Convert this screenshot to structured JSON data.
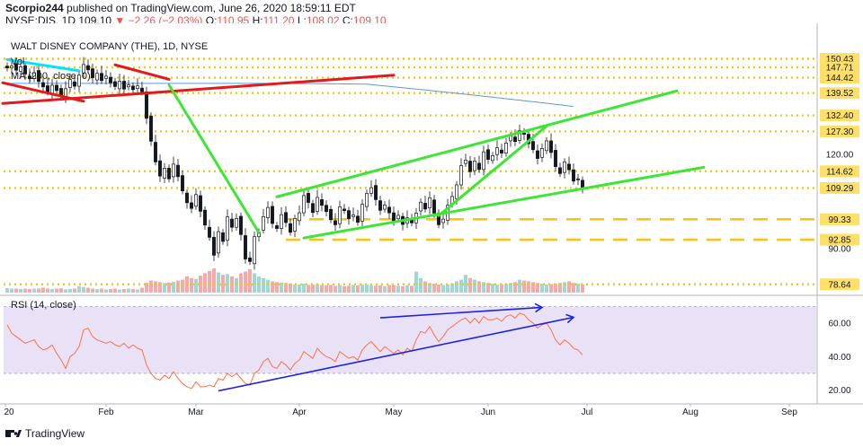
{
  "header": {
    "author": "Scorpio244",
    "published": "published on TradingView.com, June 26, 2020 18:59:11 EDT",
    "symbol": "NYSE:DIS, 1D",
    "last": "109.10",
    "change_arrow": "▼",
    "change": "−2.26 (−2.03%)",
    "o_label": "O:",
    "o_value": "110.95",
    "h_label": "H:",
    "h_value": "111.20",
    "l_label": "L:",
    "l_value": "108.02",
    "c_label": "C:",
    "c_value": "109.10"
  },
  "footer": {
    "brand": "TradingView"
  },
  "chart_data": [
    {
      "type": "candlestick",
      "title": "WALT DISNEY COMPANY (THE), 1D, NYSE",
      "legend": [
        "Vol",
        "MA (200, close, 0)"
      ],
      "colors": {
        "up": "#26a69a",
        "down": "#ef5350",
        "ma": "#5b9bd5",
        "level": "#f5c518",
        "red_line": "#e31a1c",
        "green_line": "#3de635",
        "cyan_line": "#00e5ff"
      },
      "x_ticks": [
        "20",
        "Feb",
        "Mar",
        "Apr",
        "May",
        "Jun",
        "Jul",
        "Aug",
        "Sep"
      ],
      "y_ticks": [
        150.43,
        147.71,
        144.42,
        139.52,
        132.4,
        127.3,
        120.0,
        114.62,
        109.29,
        99.33,
        92.85,
        90.0,
        78.64
      ],
      "y_range": [
        76,
        160
      ],
      "dotted_levels": [
        150.43,
        147.71,
        144.42,
        139.52,
        132.4,
        127.3,
        114.62,
        109.29,
        78.64
      ],
      "dashed_levels": [
        99.33,
        92.85
      ],
      "closes": [
        147.5,
        148.2,
        146.8,
        147.9,
        145.6,
        144.1,
        146.0,
        143.2,
        141.5,
        139.8,
        142.0,
        140.3,
        138.6,
        140.9,
        143.8,
        141.7,
        145.2,
        148.6,
        146.9,
        144.4,
        145.8,
        143.5,
        144.9,
        142.8,
        141.6,
        143.3,
        140.8,
        142.1,
        140.6,
        141.8,
        139.9,
        131.5,
        124.2,
        117.6,
        113.1,
        115.6,
        112.2,
        116.9,
        112.9,
        108.4,
        104.6,
        102.8,
        107.2,
        101.9,
        97.5,
        93.6,
        87.9,
        95.4,
        92.3,
        100.1,
        96.8,
        99.6,
        94.5,
        86.7,
        85.9,
        93.8,
        95.2,
        100.2,
        103.1,
        98.0,
        96.4,
        100.8,
        98.3,
        95.2,
        99.6,
        101.4,
        106.9,
        104.7,
        101.5,
        106.3,
        103.8,
        101.8,
        99.2,
        97.6,
        103.3,
        102.1,
        99.5,
        100.7,
        98.4,
        104.1,
        107.6,
        109.4,
        105.6,
        102.2,
        103.9,
        101.4,
        98.8,
        100.6,
        97.7,
        99.8,
        98.2,
        101.3,
        104.8,
        102.6,
        106.2,
        101.3,
        97.6,
        99.4,
        103.8,
        106.6,
        110.3,
        116.4,
        118.2,
        114.5,
        117.9,
        115.2,
        120.8,
        118.4,
        119.6,
        122.1,
        120.4,
        123.6,
        125.9,
        124.1,
        127.5,
        126.4,
        123.4,
        121.5,
        118.7,
        121.9,
        124.3,
        120.6,
        116.1,
        113.9,
        117.6,
        115.1,
        111.5,
        112.1,
        109.1
      ],
      "volume_pct": [
        0.55,
        0.5,
        0.5,
        0.45,
        0.5,
        0.45,
        0.5,
        0.5,
        0.6,
        0.5,
        0.45,
        0.5,
        0.55,
        0.4,
        0.45,
        0.5,
        0.8,
        0.7,
        0.6,
        0.5,
        0.45,
        0.5,
        0.4,
        0.45,
        0.5,
        0.4,
        0.45,
        0.5,
        0.45,
        0.4,
        0.6,
        1.2,
        1.5,
        1.4,
        1.3,
        1.2,
        1.25,
        1.35,
        1.5,
        1.6,
        2.0,
        1.8,
        1.7,
        2.1,
        2.4,
        2.7,
        3.0,
        2.5,
        2.2,
        2.3,
        2.0,
        1.8,
        2.4,
        2.6,
        2.9,
        2.4,
        2.0,
        1.8,
        1.6,
        1.4,
        1.3,
        1.25,
        1.2,
        1.1,
        1.0,
        1.0,
        1.1,
        0.95,
        1.0,
        1.05,
        0.95,
        0.9,
        0.95,
        0.85,
        0.9,
        0.8,
        0.85,
        0.95,
        0.9,
        1.0,
        1.0,
        0.9,
        0.85,
        0.9,
        0.8,
        0.95,
        0.9,
        0.85,
        0.8,
        0.9,
        0.85,
        2.6,
        1.8,
        1.4,
        1.2,
        1.1,
        1.0,
        0.95,
        1.0,
        1.1,
        1.4,
        1.6,
        2.2,
        1.8,
        1.6,
        1.4,
        1.3,
        1.2,
        1.1,
        1.0,
        1.05,
        1.1,
        1.2,
        1.3,
        1.6,
        1.5,
        1.4,
        1.3,
        1.2,
        1.1,
        1.0,
        1.05,
        1.1,
        1.2,
        1.3,
        1.4,
        1.2,
        1.1,
        1.0
      ]
    },
    {
      "type": "line",
      "title": "RSI (14, close)",
      "colors": {
        "rsi": "#ff7043",
        "band": "#e9e2f7",
        "trend": "#1e22d9"
      },
      "y_ticks": [
        60,
        40,
        20
      ],
      "y_range": [
        15,
        75
      ],
      "band": [
        30,
        70
      ],
      "values": [
        59,
        54,
        52,
        50,
        48,
        49,
        50,
        46,
        44,
        45,
        47,
        42,
        38,
        33,
        40,
        42,
        46,
        56,
        57,
        52,
        50,
        49,
        48,
        49,
        47,
        46,
        48,
        45,
        47,
        45,
        44,
        35,
        30,
        27,
        26,
        29,
        27,
        31,
        27,
        24,
        22,
        21,
        25,
        22,
        22,
        23,
        22,
        27,
        26,
        30,
        28,
        30,
        27,
        24,
        23,
        30,
        32,
        37,
        39,
        34,
        33,
        37,
        35,
        32,
        36,
        38,
        43,
        41,
        39,
        45,
        42,
        40,
        39,
        37,
        43,
        41,
        39,
        40,
        38,
        44,
        47,
        49,
        46,
        43,
        46,
        44,
        42,
        44,
        41,
        45,
        43,
        50,
        55,
        54,
        58,
        53,
        49,
        52,
        56,
        58,
        60,
        62,
        63,
        60,
        63,
        60,
        64,
        62,
        62,
        63,
        61,
        64,
        65,
        63,
        66,
        65,
        62,
        60,
        57,
        59,
        60,
        56,
        50,
        47,
        50,
        48,
        45,
        44,
        41
      ]
    }
  ]
}
